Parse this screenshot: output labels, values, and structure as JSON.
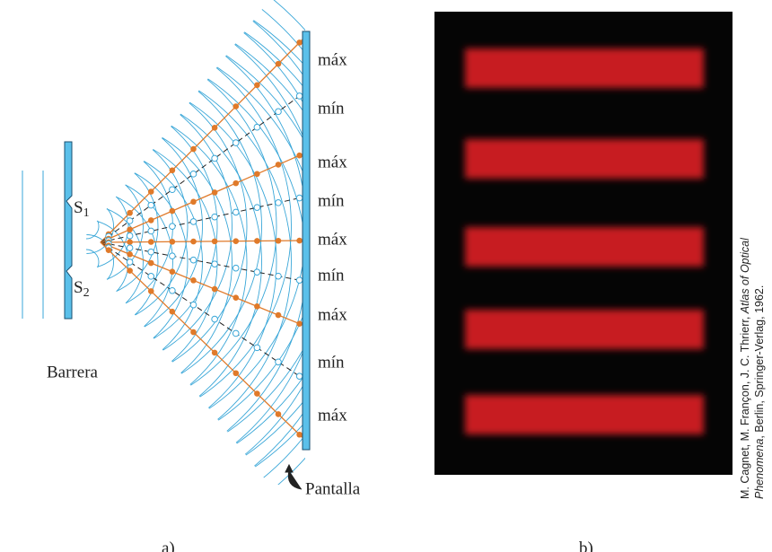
{
  "panel_a": {
    "screen_labels": [
      "máx",
      "mín",
      "máx",
      "mín",
      "máx",
      "mín",
      "máx",
      "mín",
      "máx"
    ],
    "sources": [
      {
        "letter": "S",
        "subscript": "1"
      },
      {
        "letter": "S",
        "subscript": "2"
      }
    ],
    "barrier": "Barrera",
    "screen": "Pantalla",
    "caption": "a)"
  },
  "panel_b": {
    "caption": "b)"
  },
  "credit": {
    "line1_prefix": "M. Cagnet, M. Françon, J. C. Thrierr, ",
    "line1_italic": "Atlas of Optical",
    "line2_italic": "Phenomena",
    "line2_suffix": ", Berlin, Springer-Verlag, 1962."
  }
}
